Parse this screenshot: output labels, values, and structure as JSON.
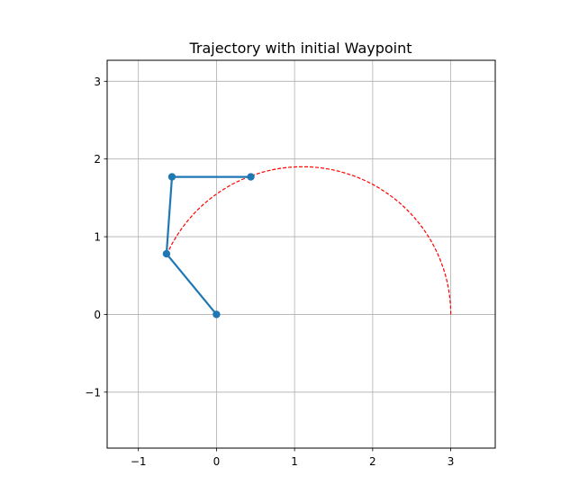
{
  "chart_data": {
    "type": "line",
    "title": "Trajectory with initial Waypoint",
    "xlabel": "",
    "ylabel": "",
    "xlim": [
      -1.4,
      3.57
    ],
    "ylim": [
      -1.72,
      3.27
    ],
    "x_ticks": [
      -1,
      0,
      1,
      2,
      3
    ],
    "y_ticks": [
      -1,
      0,
      1,
      2,
      3
    ],
    "x_tick_labels": [
      "−1",
      "0",
      "1",
      "2",
      "3"
    ],
    "y_tick_labels": [
      "−1",
      "0",
      "1",
      "2",
      "3"
    ],
    "grid": true,
    "series": [
      {
        "style": "solid line with circle markers",
        "color": "#1f77b4",
        "x": [
          0.0,
          -0.64,
          -0.57,
          0.44
        ],
        "y": [
          0.0,
          0.78,
          1.77,
          1.77
        ]
      },
      {
        "style": "dashed line",
        "color": "#ff0000",
        "arc": {
          "center": [
            1.1,
            0.0
          ],
          "radius": 1.9,
          "start_deg": 0,
          "end_deg": 155
        }
      }
    ]
  }
}
